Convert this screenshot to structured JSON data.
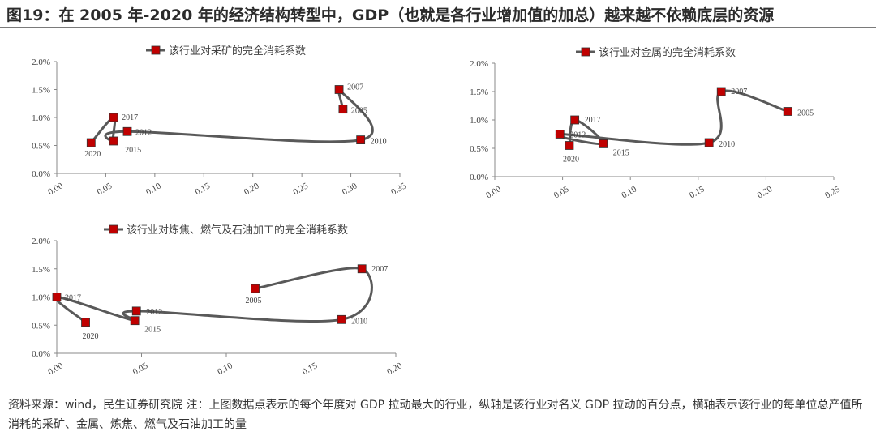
{
  "title": "图19：在 2005 年-2020 年的经济结构转型中，GDP（也就是各行业增加值的加总）越来越不依赖底层的资源",
  "source": "资料来源：wind，民生证券研究院 注：上图数据点表示的每个年度对 GDP 拉动最大的行业，纵轴是该行业对名义 GDP 拉动的百分点，横轴表示该行业的每单位总产值所消耗的采矿、金属、炼焦、燃气及石油加工的量",
  "colors": {
    "series": "#595959",
    "marker": "#c00000",
    "axis": "#888888",
    "text": "#404040"
  },
  "chart_data": [
    {
      "type": "scatter",
      "legend": "该行业对采矿的完全消耗系数",
      "legend_position": "top",
      "xlim": [
        0,
        0.35
      ],
      "ylim": [
        0,
        0.02
      ],
      "x_ticks": [
        "0.00",
        "0.05",
        "0.10",
        "0.15",
        "0.20",
        "0.25",
        "0.30",
        "0.35"
      ],
      "y_ticks": [
        "0.0%",
        "0.5%",
        "1.0%",
        "1.5%",
        "2.0%"
      ],
      "points": [
        {
          "label": "2005",
          "x": 0.292,
          "y": 0.0115
        },
        {
          "label": "2007",
          "x": 0.288,
          "y": 0.015
        },
        {
          "label": "2010",
          "x": 0.31,
          "y": 0.006
        },
        {
          "label": "2012",
          "x": 0.072,
          "y": 0.0075
        },
        {
          "label": "2015",
          "x": 0.058,
          "y": 0.0058
        },
        {
          "label": "2017",
          "x": 0.058,
          "y": 0.01
        },
        {
          "label": "2020",
          "x": 0.035,
          "y": 0.0055
        }
      ]
    },
    {
      "type": "scatter",
      "legend": "该行业对金属的完全消耗系数",
      "legend_position": "top",
      "xlim": [
        0,
        0.25
      ],
      "ylim": [
        0,
        0.02
      ],
      "x_ticks": [
        "0.00",
        "0.05",
        "0.10",
        "0.15",
        "0.20",
        "0.25"
      ],
      "y_ticks": [
        "0.0%",
        "0.5%",
        "1.0%",
        "1.5%",
        "2.0%"
      ],
      "points": [
        {
          "label": "2005",
          "x": 0.216,
          "y": 0.0115
        },
        {
          "label": "2007",
          "x": 0.167,
          "y": 0.015
        },
        {
          "label": "2010",
          "x": 0.158,
          "y": 0.006
        },
        {
          "label": "2012",
          "x": 0.048,
          "y": 0.0075
        },
        {
          "label": "2015",
          "x": 0.08,
          "y": 0.0058
        },
        {
          "label": "2017",
          "x": 0.059,
          "y": 0.01
        },
        {
          "label": "2020",
          "x": 0.055,
          "y": 0.0055
        }
      ]
    },
    {
      "type": "scatter",
      "legend": "该行业对炼焦、燃气及石油加工的完全消耗系数",
      "legend_position": "top",
      "xlim": [
        0,
        0.2
      ],
      "ylim": [
        0,
        0.02
      ],
      "x_ticks": [
        "0.00",
        "0.05",
        "0.10",
        "0.15",
        "0.20"
      ],
      "y_ticks": [
        "0.0%",
        "0.5%",
        "1.0%",
        "1.5%",
        "2.0%"
      ],
      "points": [
        {
          "label": "2005",
          "x": 0.117,
          "y": 0.0115
        },
        {
          "label": "2007",
          "x": 0.18,
          "y": 0.015
        },
        {
          "label": "2010",
          "x": 0.168,
          "y": 0.006
        },
        {
          "label": "2012",
          "x": 0.047,
          "y": 0.0075
        },
        {
          "label": "2015",
          "x": 0.046,
          "y": 0.0058
        },
        {
          "label": "2017",
          "x": 0.0,
          "y": 0.01
        },
        {
          "label": "2020",
          "x": 0.017,
          "y": 0.0055
        }
      ]
    }
  ]
}
